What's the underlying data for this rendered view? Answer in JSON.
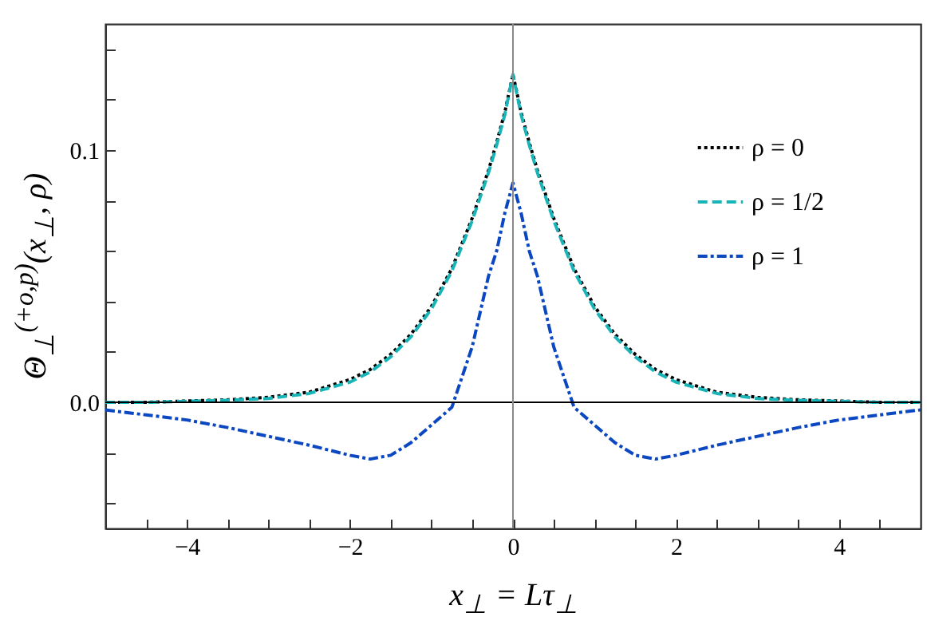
{
  "chart_data": {
    "type": "line",
    "xlabel": "x$_{⊥}$ = Lτ$_{⊥}$",
    "ylabel": "Θ$_{⊥}$$^{(+o,p)}$(x$_{⊥}$, ρ)",
    "x": [
      -5,
      -4.5,
      -4,
      -3.5,
      -3,
      -2.5,
      -2,
      -1.75,
      -1.5,
      -1.25,
      -1,
      -0.75,
      -0.5,
      -0.3,
      -0.2,
      -0.1,
      0,
      0.1,
      0.2,
      0.3,
      0.5,
      0.75,
      1,
      1.25,
      1.5,
      1.75,
      2,
      2.5,
      3,
      3.5,
      4,
      4.5,
      5
    ],
    "series": [
      {
        "name": "ρ = 0",
        "color": "#000000",
        "line_style": "dotted",
        "values": [
          0,
          0,
          0.0005,
          0.001,
          0.002,
          0.004,
          0.009,
          0.013,
          0.019,
          0.027,
          0.038,
          0.053,
          0.073,
          0.092,
          0.103,
          0.115,
          0.13,
          0.115,
          0.103,
          0.092,
          0.073,
          0.053,
          0.038,
          0.027,
          0.019,
          0.013,
          0.009,
          0.004,
          0.002,
          0.001,
          0.0005,
          0,
          0
        ]
      },
      {
        "name": "ρ = 1/2",
        "color": "#19b4b8",
        "line_style": "dashed",
        "values": [
          0,
          0,
          0.0004,
          0.0008,
          0.0015,
          0.0035,
          0.008,
          0.012,
          0.018,
          0.026,
          0.037,
          0.052,
          0.072,
          0.091,
          0.102,
          0.114,
          0.13,
          0.114,
          0.102,
          0.091,
          0.072,
          0.052,
          0.037,
          0.026,
          0.018,
          0.012,
          0.008,
          0.0035,
          0.0015,
          0.0008,
          0.0004,
          0,
          0
        ]
      },
      {
        "name": "ρ = 1",
        "color": "#0b47c0",
        "line_style": "dashdot",
        "values": [
          -0.003,
          -0.005,
          -0.007,
          -0.01,
          -0.0135,
          -0.017,
          -0.021,
          -0.0225,
          -0.021,
          -0.016,
          -0.009,
          -0.002,
          0.022,
          0.05,
          0.06,
          0.075,
          0.087,
          0.075,
          0.06,
          0.05,
          0.022,
          -0.002,
          -0.009,
          -0.016,
          -0.021,
          -0.0225,
          -0.021,
          -0.017,
          -0.0135,
          -0.01,
          -0.007,
          -0.005,
          -0.003
        ]
      }
    ],
    "xlim": [
      -5,
      5
    ],
    "xticks": [
      {
        "value": -4.5,
        "label": null
      },
      {
        "value": -4,
        "label": "−4"
      },
      {
        "value": -3.5,
        "label": null
      },
      {
        "value": -3,
        "label": null
      },
      {
        "value": -2.5,
        "label": null
      },
      {
        "value": -2,
        "label": "−2"
      },
      {
        "value": -1.5,
        "label": null
      },
      {
        "value": -1,
        "label": null
      },
      {
        "value": -0.5,
        "label": null
      },
      0,
      {
        "value": 0.5,
        "label": null
      },
      {
        "value": 1,
        "label": null
      },
      {
        "value": 1.5,
        "label": null
      },
      2,
      {
        "value": 2.5,
        "label": null
      },
      {
        "value": 3,
        "label": null
      },
      {
        "value": 3.5,
        "label": null
      },
      4,
      {
        "value": 4.5,
        "label": null
      }
    ],
    "ylim": [
      -0.05,
      0.15
    ],
    "yticks": [
      {
        "value": -0.04,
        "label": null
      },
      {
        "value": -0.02,
        "label": null
      },
      {
        "value": 0,
        "label": "0.0"
      },
      {
        "value": 0.02,
        "label": null
      },
      {
        "value": 0.04,
        "label": null
      },
      {
        "value": 0.06,
        "label": null
      },
      {
        "value": 0.08,
        "label": null
      },
      {
        "value": 0.1,
        "label": "0.1"
      },
      {
        "value": 0.12,
        "label": null
      },
      {
        "value": 0.14,
        "label": null
      }
    ],
    "ref_lines": [
      {
        "axis": "x",
        "value": 0,
        "label": null,
        "color": "#888888"
      },
      {
        "axis": "y",
        "value": 0,
        "label": null,
        "color": "#000000"
      }
    ],
    "grid": false,
    "legend": "top right"
  }
}
